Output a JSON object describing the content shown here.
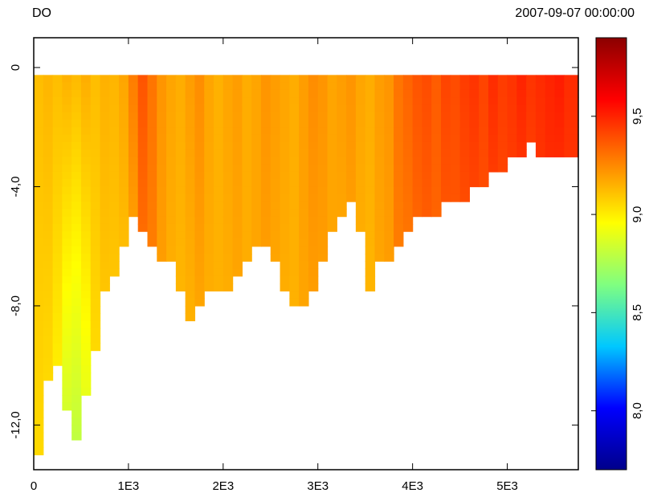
{
  "header": {
    "title": "DO",
    "timestamp": "2007-09-07 00:00:00"
  },
  "chart_data": {
    "type": "heatmap",
    "title": "DO",
    "subtitle": "2007-09-07 00:00:00",
    "xlim": [
      0,
      5750
    ],
    "ylim": [
      -13.5,
      1.0
    ],
    "x_ticks": [
      {
        "value": 0,
        "label": "0"
      },
      {
        "value": 1000,
        "label": "1E3"
      },
      {
        "value": 2000,
        "label": "2E3"
      },
      {
        "value": 3000,
        "label": "3E3"
      },
      {
        "value": 4000,
        "label": "4E3"
      },
      {
        "value": 5000,
        "label": "5E3"
      }
    ],
    "y_ticks": [
      {
        "value": 0,
        "label": "0"
      },
      {
        "value": -4,
        "label": "-4,0"
      },
      {
        "value": -8,
        "label": "-8,0"
      },
      {
        "value": -12,
        "label": "-12,0"
      }
    ],
    "surface_level": -0.25,
    "colorbar": {
      "min": 7.7,
      "max": 9.9,
      "ticks": [
        {
          "value": 8.0,
          "label": "8,0"
        },
        {
          "value": 8.5,
          "label": "8,5"
        },
        {
          "value": 9.0,
          "label": "9,0"
        },
        {
          "value": 9.5,
          "label": "9,5"
        }
      ],
      "colors": [
        "#00008b",
        "#0000ff",
        "#00c8ff",
        "#80ff80",
        "#ffff00",
        "#ff8000",
        "#ff0000",
        "#8b0000"
      ]
    },
    "columns": {
      "x": [
        0,
        100,
        200,
        300,
        400,
        500,
        600,
        700,
        800,
        900,
        1000,
        1100,
        1200,
        1300,
        1400,
        1500,
        1600,
        1700,
        1800,
        1900,
        2000,
        2100,
        2200,
        2300,
        2400,
        2500,
        2600,
        2700,
        2800,
        2900,
        3000,
        3100,
        3200,
        3300,
        3400,
        3500,
        3600,
        3700,
        3800,
        3900,
        4000,
        4100,
        4200,
        4300,
        4400,
        4500,
        4600,
        4700,
        4800,
        4900,
        5000,
        5100,
        5200,
        5300,
        5400,
        5500,
        5600
      ],
      "bottom_depth": [
        -13.0,
        -10.5,
        -10.0,
        -11.5,
        -12.5,
        -11.0,
        -9.5,
        -7.5,
        -7.0,
        -6.0,
        -5.0,
        -5.5,
        -6.0,
        -6.5,
        -6.5,
        -7.5,
        -8.5,
        -8.0,
        -7.5,
        -7.5,
        -7.5,
        -7.0,
        -6.5,
        -6.0,
        -6.0,
        -6.5,
        -7.5,
        -8.0,
        -8.0,
        -7.5,
        -6.5,
        -5.5,
        -5.0,
        -4.5,
        -5.5,
        -7.5,
        -6.5,
        -6.5,
        -6.0,
        -5.5,
        -5.0,
        -5.0,
        -5.0,
        -4.5,
        -4.5,
        -4.5,
        -4.0,
        -4.0,
        -3.5,
        -3.5,
        -3.0,
        -3.0,
        -2.5,
        -3.0,
        -3.0,
        -3.0,
        -3.0
      ],
      "surface_value": [
        9.12,
        9.14,
        9.12,
        9.15,
        9.13,
        9.16,
        9.12,
        9.15,
        9.14,
        9.18,
        9.28,
        9.38,
        9.3,
        9.22,
        9.18,
        9.16,
        9.2,
        9.24,
        9.18,
        9.15,
        9.18,
        9.2,
        9.16,
        9.18,
        9.22,
        9.2,
        9.18,
        9.16,
        9.2,
        9.24,
        9.22,
        9.18,
        9.2,
        9.22,
        9.18,
        9.16,
        9.2,
        9.22,
        9.3,
        9.34,
        9.38,
        9.4,
        9.36,
        9.42,
        9.4,
        9.44,
        9.46,
        9.42,
        9.48,
        9.44,
        9.46,
        9.5,
        9.46,
        9.48,
        9.5,
        9.52,
        9.48
      ],
      "bottom_value": [
        9.05,
        9.05,
        9.0,
        8.85,
        8.8,
        8.9,
        9.05,
        9.1,
        9.1,
        9.12,
        9.2,
        9.32,
        9.28,
        9.2,
        9.16,
        9.14,
        9.15,
        9.18,
        9.16,
        9.15,
        9.16,
        9.18,
        9.16,
        9.18,
        9.2,
        9.18,
        9.16,
        9.15,
        9.18,
        9.2,
        9.2,
        9.18,
        9.18,
        9.2,
        9.16,
        9.14,
        9.18,
        9.2,
        9.28,
        9.3,
        9.34,
        9.36,
        9.34,
        9.38,
        9.38,
        9.4,
        9.42,
        9.4,
        9.44,
        9.42,
        9.44,
        9.46,
        9.44,
        9.46,
        9.48,
        9.48,
        9.46
      ]
    }
  }
}
